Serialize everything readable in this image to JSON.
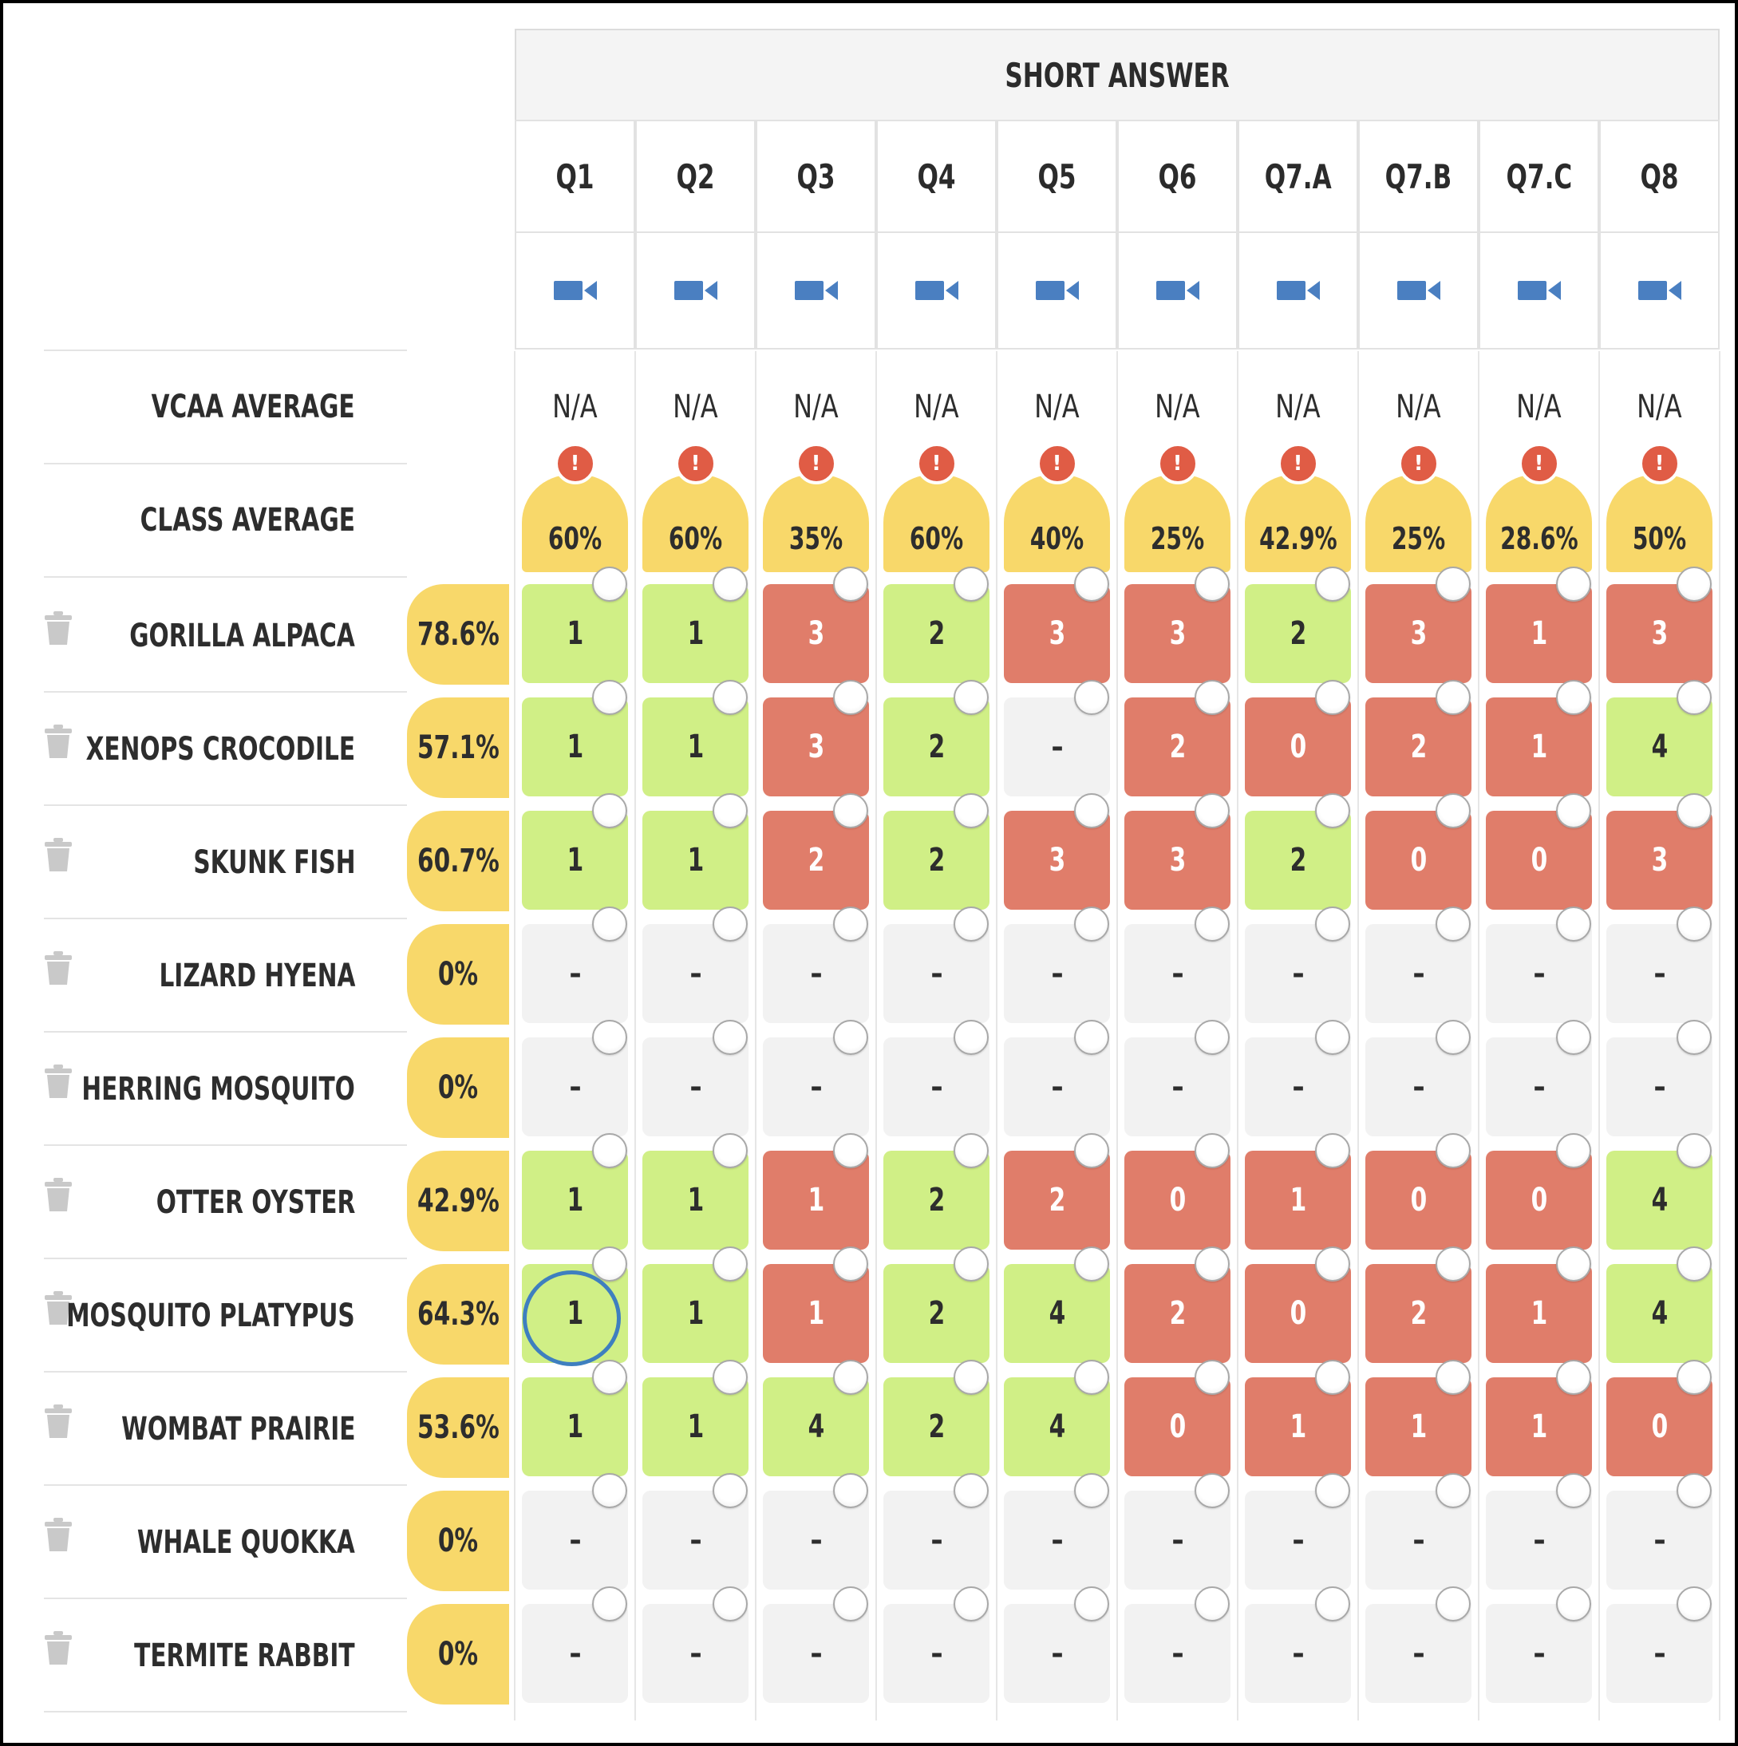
{
  "section_title": "SHORT ANSWER",
  "questions": [
    "Q1",
    "Q2",
    "Q3",
    "Q4",
    "Q5",
    "Q6",
    "Q7.A",
    "Q7.B",
    "Q7.C",
    "Q8"
  ],
  "video_icon": "video-camera-icon",
  "vcaa_label": "VCAA AVERAGE",
  "vcaa_values": [
    "N/A",
    "N/A",
    "N/A",
    "N/A",
    "N/A",
    "N/A",
    "N/A",
    "N/A",
    "N/A",
    "N/A"
  ],
  "class_label": "CLASS AVERAGE",
  "class_values": [
    "60%",
    "60%",
    "35%",
    "60%",
    "40%",
    "25%",
    "42.9%",
    "25%",
    "28.6%",
    "50%"
  ],
  "alert_glyph": "!",
  "colors": {
    "green": "#d0ef86",
    "red": "#e07d6a",
    "empty": "#f2f2f2",
    "yellow": "#f8d86a",
    "accent": "#3e7fbf"
  },
  "students": [
    {
      "name": "GORILLA ALPACA",
      "pct": "78.6%",
      "scores": [
        "1",
        "1",
        "3",
        "2",
        "3",
        "3",
        "2",
        "3",
        "1",
        "3"
      ],
      "status": [
        "g",
        "g",
        "r",
        "g",
        "r",
        "r",
        "g",
        "r",
        "r",
        "r"
      ]
    },
    {
      "name": "XENOPS CROCODILE",
      "pct": "57.1%",
      "scores": [
        "1",
        "1",
        "3",
        "2",
        "–",
        "2",
        "0",
        "2",
        "1",
        "4"
      ],
      "status": [
        "g",
        "g",
        "r",
        "g",
        "e",
        "r",
        "r",
        "r",
        "r",
        "g"
      ]
    },
    {
      "name": "SKUNK FISH",
      "pct": "60.7%",
      "scores": [
        "1",
        "1",
        "2",
        "2",
        "3",
        "3",
        "2",
        "0",
        "0",
        "3"
      ],
      "status": [
        "g",
        "g",
        "r",
        "g",
        "r",
        "r",
        "g",
        "r",
        "r",
        "r"
      ]
    },
    {
      "name": "LIZARD HYENA",
      "pct": "0%",
      "scores": [
        "–",
        "–",
        "–",
        "–",
        "–",
        "–",
        "–",
        "–",
        "–",
        "–"
      ],
      "status": [
        "e",
        "e",
        "e",
        "e",
        "e",
        "e",
        "e",
        "e",
        "e",
        "e"
      ]
    },
    {
      "name": "HERRING MOSQUITO",
      "pct": "0%",
      "scores": [
        "–",
        "–",
        "–",
        "–",
        "–",
        "–",
        "–",
        "–",
        "–",
        "–"
      ],
      "status": [
        "e",
        "e",
        "e",
        "e",
        "e",
        "e",
        "e",
        "e",
        "e",
        "e"
      ]
    },
    {
      "name": "OTTER OYSTER",
      "pct": "42.9%",
      "scores": [
        "1",
        "1",
        "1",
        "2",
        "2",
        "0",
        "1",
        "0",
        "0",
        "4"
      ],
      "status": [
        "g",
        "g",
        "r",
        "g",
        "r",
        "r",
        "r",
        "r",
        "r",
        "g"
      ]
    },
    {
      "name": "MOSQUITO PLATYPUS",
      "pct": "64.3%",
      "scores": [
        "1",
        "1",
        "1",
        "2",
        "4",
        "2",
        "0",
        "2",
        "1",
        "4"
      ],
      "status": [
        "g",
        "g",
        "r",
        "g",
        "g",
        "r",
        "r",
        "r",
        "r",
        "g"
      ]
    },
    {
      "name": "WOMBAT PRAIRIE",
      "pct": "53.6%",
      "scores": [
        "1",
        "1",
        "4",
        "2",
        "4",
        "0",
        "1",
        "1",
        "1",
        "0"
      ],
      "status": [
        "g",
        "g",
        "g",
        "g",
        "g",
        "r",
        "r",
        "r",
        "r",
        "r"
      ]
    },
    {
      "name": "WHALE QUOKKA",
      "pct": "0%",
      "scores": [
        "–",
        "–",
        "–",
        "–",
        "–",
        "–",
        "–",
        "–",
        "–",
        "–"
      ],
      "status": [
        "e",
        "e",
        "e",
        "e",
        "e",
        "e",
        "e",
        "e",
        "e",
        "e"
      ]
    },
    {
      "name": "TERMITE RABBIT",
      "pct": "0%",
      "scores": [
        "–",
        "–",
        "–",
        "–",
        "–",
        "–",
        "–",
        "–",
        "–",
        "–"
      ],
      "status": [
        "e",
        "e",
        "e",
        "e",
        "e",
        "e",
        "e",
        "e",
        "e",
        "e"
      ]
    }
  ],
  "highlighted_cell": {
    "row": 6,
    "col": 0
  }
}
